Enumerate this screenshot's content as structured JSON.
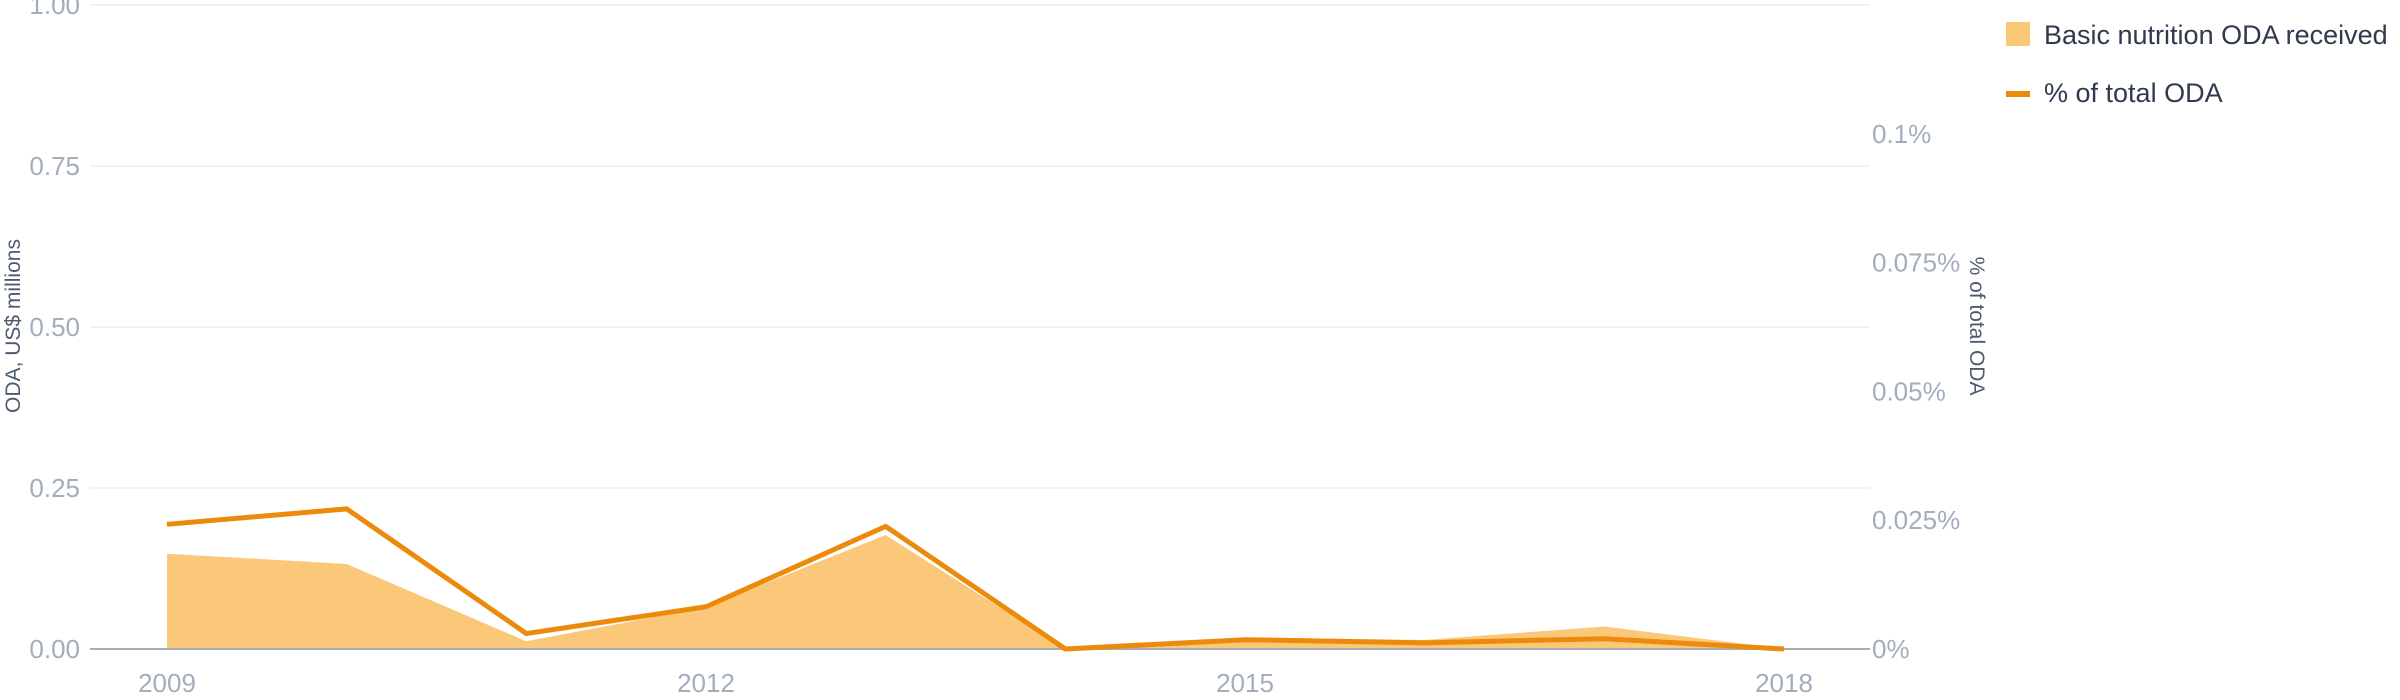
{
  "colors": {
    "area": "#fbc87a",
    "line": "#ec8a0c",
    "grid": "#eceff3",
    "baseline": "#a8adb5",
    "tick_text": "#a3aebd",
    "axis_title": "#4e5a6e"
  },
  "chart_data": {
    "type": "area",
    "x": [
      2009,
      2010,
      2011,
      2012,
      2013,
      2014,
      2015,
      2016,
      2017,
      2018
    ],
    "x_ticks": [
      2009,
      2012,
      2015,
      2018
    ],
    "x_tick_labels": [
      "2009",
      "2012",
      "2015",
      "2018"
    ],
    "series": [
      {
        "name": "Basic nutrition ODA received",
        "kind": "area",
        "axis": "left",
        "values": [
          0.148,
          0.132,
          0.012,
          0.065,
          0.177,
          0.0,
          0.018,
          0.014,
          0.035,
          0.0
        ]
      },
      {
        "name": "% of total ODA",
        "kind": "line",
        "axis": "right",
        "values": [
          0.0242,
          0.0272,
          0.003,
          0.0082,
          0.0238,
          0.0,
          0.0018,
          0.0012,
          0.002,
          0.0
        ]
      }
    ],
    "y_left": {
      "label": "ODA, US$ millions",
      "ylim": [
        0,
        1.0
      ],
      "ticks": [
        0,
        0.25,
        0.5,
        0.75,
        1.0
      ],
      "tick_labels": [
        "0.00",
        "0.25",
        "0.50",
        "0.75",
        "1.00"
      ]
    },
    "y_right": {
      "label": "% of total ODA",
      "ylim": [
        0,
        0.125
      ],
      "ticks": [
        0,
        0.025,
        0.05,
        0.075,
        0.1
      ],
      "tick_labels": [
        "0%",
        "0.025%",
        "0.05%",
        "0.075%",
        "0.1%"
      ]
    },
    "grid": true,
    "legend": "top-right"
  }
}
